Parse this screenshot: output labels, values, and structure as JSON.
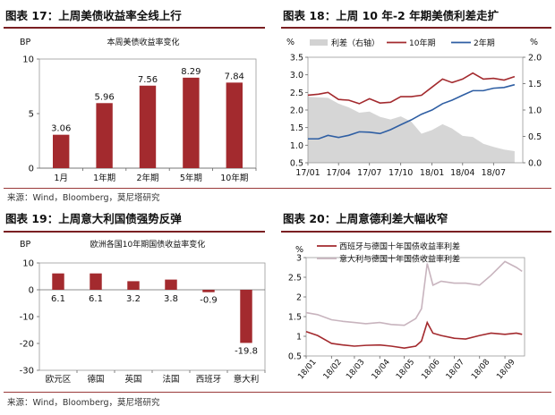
{
  "panels": [
    {
      "title": "图表 17：上周美债收益率全线上行"
    },
    {
      "title": "图表 18：上周 10 年-2 年期美债利差走扩"
    },
    {
      "title": "图表 19：上周意大利国债强势反弹"
    },
    {
      "title": "图表 20：上周意德利差大幅收窄"
    }
  ],
  "source_note": "来源：Wind，Bloomberg，莫尼塔研究",
  "colors": {
    "accent": "#7a1f22",
    "bar": "#a32a2e",
    "line_blue": "#2e5ea3",
    "spread_gray": "#d2d2d2",
    "line_pink": "#c8b4be"
  },
  "chart_data": [
    {
      "type": "bar",
      "title": "本周美债收益率变化",
      "ylabel": "BP",
      "categories": [
        "1月",
        "1年期",
        "2年期",
        "5年期",
        "10年期"
      ],
      "values": [
        3.06,
        5.96,
        7.56,
        8.29,
        7.84
      ],
      "value_labels": [
        "3.06",
        "5.96",
        "7.56",
        "8.29",
        "7.84"
      ],
      "ylim": [
        0,
        10
      ],
      "yticks": [
        "0",
        "5",
        "10"
      ]
    },
    {
      "type": "line",
      "left_unit": "%",
      "right_unit": "%",
      "x_ticks": [
        "17/01",
        "17/04",
        "17/07",
        "17/10",
        "18/01",
        "18/04",
        "18/07"
      ],
      "y_left_ticks": [
        "0.5",
        "1.0",
        "1.5",
        "2.0",
        "2.5",
        "3.0",
        "3.5"
      ],
      "y_right_ticks": [
        "0.0",
        "0.5",
        "1.0",
        "1.5",
        "2.0"
      ],
      "ylim_left": [
        0.5,
        3.5
      ],
      "ylim_right": [
        0.0,
        2.0
      ],
      "x": [
        "2017-01",
        "2017-02",
        "2017-03",
        "2017-04",
        "2017-05",
        "2017-06",
        "2017-07",
        "2017-08",
        "2017-09",
        "2017-10",
        "2017-11",
        "2017-12",
        "2018-01",
        "2018-02",
        "2018-03",
        "2018-04",
        "2018-05",
        "2018-06",
        "2018-07",
        "2018-08",
        "2018-09"
      ],
      "series": [
        {
          "name": "利差（右轴）",
          "axis": "right",
          "style": "area",
          "values": [
            1.25,
            1.24,
            1.23,
            1.12,
            1.05,
            0.95,
            0.97,
            0.87,
            0.82,
            0.88,
            0.78,
            0.55,
            0.62,
            0.73,
            0.65,
            0.51,
            0.49,
            0.36,
            0.3,
            0.25,
            0.22
          ]
        },
        {
          "name": "10年期",
          "axis": "left",
          "style": "line",
          "values": [
            2.42,
            2.45,
            2.5,
            2.3,
            2.28,
            2.18,
            2.32,
            2.2,
            2.22,
            2.38,
            2.38,
            2.42,
            2.65,
            2.88,
            2.78,
            2.88,
            3.05,
            2.88,
            2.9,
            2.85,
            2.95
          ]
        },
        {
          "name": "2年期",
          "axis": "left",
          "style": "line",
          "values": [
            1.18,
            1.18,
            1.28,
            1.22,
            1.28,
            1.38,
            1.37,
            1.33,
            1.44,
            1.58,
            1.72,
            1.88,
            2.0,
            2.18,
            2.28,
            2.42,
            2.55,
            2.55,
            2.62,
            2.64,
            2.72
          ]
        }
      ]
    },
    {
      "type": "bar",
      "title": "欧洲各国10年期国债收益率变化",
      "ylabel": "BP",
      "categories": [
        "欧元区",
        "德国",
        "英国",
        "法国",
        "西班牙",
        "意大利"
      ],
      "values": [
        6.1,
        6.1,
        3.2,
        3.8,
        -0.9,
        -19.8
      ],
      "value_labels": [
        "6.1",
        "6.1",
        "3.2",
        "3.8",
        "-0.9",
        "-19.8"
      ],
      "ylim": [
        -30,
        10
      ],
      "yticks": [
        "-30",
        "-20",
        "-10",
        "0",
        "10"
      ]
    },
    {
      "type": "line",
      "ylabel": "%",
      "x_ticks": [
        "18/01",
        "18/02",
        "18/03",
        "18/04",
        "18/05",
        "18/06",
        "18/07",
        "18/08",
        "18/09"
      ],
      "y_ticks": [
        "0.5",
        "1",
        "1.5",
        "2",
        "2.5",
        "3"
      ],
      "ylim": [
        0.5,
        3.0
      ],
      "x": [
        "2018-01-01",
        "2018-01-15",
        "2018-02-01",
        "2018-02-15",
        "2018-03-01",
        "2018-03-15",
        "2018-04-01",
        "2018-04-15",
        "2018-05-01",
        "2018-05-15",
        "2018-05-22",
        "2018-05-29",
        "2018-06-05",
        "2018-06-15",
        "2018-07-01",
        "2018-07-15",
        "2018-08-01",
        "2018-08-15",
        "2018-09-01",
        "2018-09-15",
        "2018-09-22"
      ],
      "series": [
        {
          "name": "西班牙与德国十年国债收益率利差",
          "values": [
            1.12,
            1.02,
            0.82,
            0.78,
            0.75,
            0.77,
            0.78,
            0.75,
            0.7,
            0.75,
            0.88,
            1.35,
            1.08,
            1.02,
            0.95,
            0.93,
            1.02,
            1.08,
            1.05,
            1.08,
            1.05
          ]
        },
        {
          "name": "意大利与德国十年国债收益率利差",
          "values": [
            1.6,
            1.55,
            1.42,
            1.38,
            1.35,
            1.32,
            1.35,
            1.3,
            1.28,
            1.45,
            1.7,
            2.85,
            2.3,
            2.4,
            2.35,
            2.35,
            2.3,
            2.55,
            2.9,
            2.75,
            2.65
          ]
        }
      ]
    }
  ]
}
